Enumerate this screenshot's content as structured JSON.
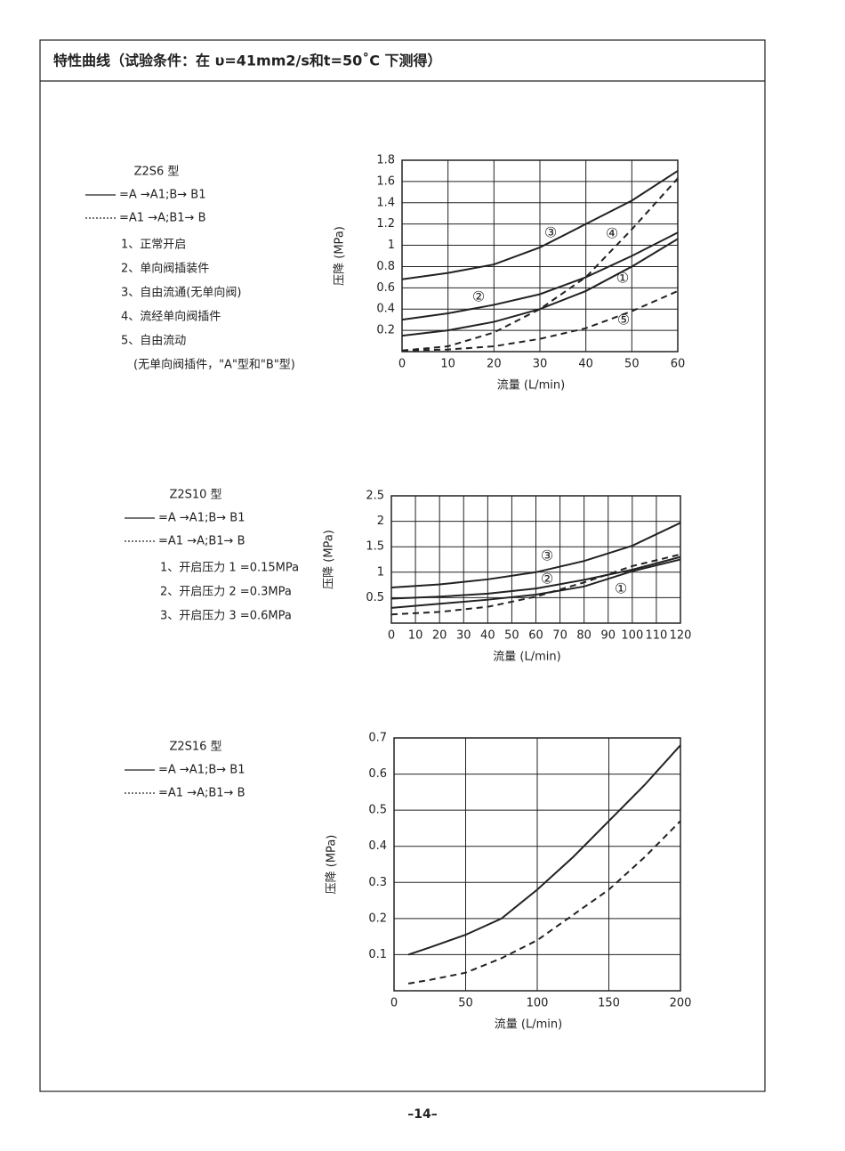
{
  "header": {
    "title": "特性曲线（试验条件：在 υ=41mm2/s和t=50˚C 下测得）"
  },
  "chart_data": [
    {
      "type": "line",
      "model": "Z2S6 型",
      "legend": [
        {
          "style": "solid",
          "label": "=A →A1;B→ B1"
        },
        {
          "style": "dashed",
          "label": "=A1 →A;B1→ B"
        }
      ],
      "notes": [
        "1、正常开启",
        "2、单向阀插装件",
        "3、自由流通(无单向阀)",
        "4、流经单向阀插件",
        "5、自由流动",
        "(无单向阀插件，\"A\"型和\"B\"型)"
      ],
      "x_label": "流量 (L/min)",
      "y_label": "压降 (MPa)",
      "xlim": [
        0,
        60
      ],
      "xticks": [
        0,
        10,
        20,
        30,
        40,
        50,
        60
      ],
      "ylim": [
        0,
        1.8
      ],
      "yticks": [
        0.2,
        0.4,
        0.6,
        0.8,
        1.0,
        1.2,
        1.4,
        1.6,
        1.8
      ],
      "grid": true,
      "x": [
        0,
        10,
        20,
        30,
        40,
        50,
        60
      ],
      "series": [
        {
          "name": "③",
          "style": "solid",
          "color": "#222",
          "values": [
            0.68,
            0.74,
            0.82,
            0.98,
            1.2,
            1.42,
            1.7
          ]
        },
        {
          "name": "②",
          "style": "solid",
          "color": "#222",
          "values": [
            0.3,
            0.36,
            0.44,
            0.54,
            0.7,
            0.9,
            1.12
          ]
        },
        {
          "name": "①",
          "style": "solid",
          "color": "#222",
          "values": [
            0.15,
            0.2,
            0.28,
            0.4,
            0.57,
            0.8,
            1.06
          ]
        },
        {
          "name": "④",
          "style": "dashed",
          "color": "#222",
          "values": [
            0.01,
            0.05,
            0.18,
            0.4,
            0.7,
            1.15,
            1.63
          ]
        },
        {
          "name": "⑤",
          "style": "dashed",
          "color": "#222",
          "values": [
            0.01,
            0.02,
            0.05,
            0.12,
            0.22,
            0.38,
            0.57
          ]
        }
      ]
    },
    {
      "type": "line",
      "model": "Z2S10 型",
      "legend": [
        {
          "style": "solid",
          "label": "=A →A1;B→ B1"
        },
        {
          "style": "dashed",
          "label": "=A1 →A;B1→ B"
        }
      ],
      "notes": [
        "1、开启压力 1 =0.15MPa",
        "2、开启压力 2 =0.3MPa",
        "3、开启压力 3 =0.6MPa"
      ],
      "x_label": "流量 (L/min)",
      "y_label": "压降 (MPa)",
      "xlim": [
        0,
        120
      ],
      "xticks": [
        0,
        10,
        20,
        30,
        40,
        50,
        60,
        70,
        80,
        90,
        100,
        110,
        120
      ],
      "ylim": [
        0,
        2.5
      ],
      "yticks": [
        0.5,
        1.0,
        1.5,
        2.0,
        2.5
      ],
      "grid": true,
      "x": [
        0,
        20,
        40,
        60,
        80,
        100,
        120
      ],
      "series": [
        {
          "name": "③",
          "style": "solid",
          "color": "#222",
          "values": [
            0.7,
            0.76,
            0.86,
            1.0,
            1.22,
            1.52,
            1.97
          ]
        },
        {
          "name": "②",
          "style": "solid",
          "color": "#222",
          "values": [
            0.48,
            0.52,
            0.58,
            0.68,
            0.85,
            1.05,
            1.3
          ]
        },
        {
          "name": "①",
          "style": "solid",
          "color": "#222",
          "values": [
            0.3,
            0.38,
            0.46,
            0.56,
            0.72,
            1.02,
            1.25
          ]
        },
        {
          "style": "dashed",
          "color": "#222",
          "values": [
            0.17,
            0.22,
            0.32,
            0.52,
            0.8,
            1.12,
            1.35
          ]
        }
      ]
    },
    {
      "type": "line",
      "model": "Z2S16 型",
      "legend": [
        {
          "style": "solid",
          "label": "=A →A1;B→ B1"
        },
        {
          "style": "dashed",
          "label": "=A1 →A;B1→ B"
        }
      ],
      "notes": [],
      "x_label": "流量 (L/min)",
      "y_label": "压降 (MPa)",
      "xlim": [
        0,
        200
      ],
      "xticks": [
        0,
        50,
        100,
        150,
        200
      ],
      "ylim": [
        0,
        0.7
      ],
      "yticks": [
        0.1,
        0.2,
        0.3,
        0.4,
        0.5,
        0.6,
        0.7
      ],
      "grid": true,
      "x": [
        10,
        25,
        50,
        75,
        100,
        125,
        150,
        175,
        200
      ],
      "series": [
        {
          "style": "solid",
          "color": "#222",
          "values": [
            0.1,
            0.12,
            0.155,
            0.2,
            0.28,
            0.37,
            0.47,
            0.57,
            0.68
          ]
        },
        {
          "style": "dashed",
          "color": "#222",
          "values": [
            0.02,
            0.03,
            0.05,
            0.09,
            0.14,
            0.21,
            0.28,
            0.37,
            0.47
          ]
        }
      ]
    }
  ],
  "page_number": "–14–"
}
